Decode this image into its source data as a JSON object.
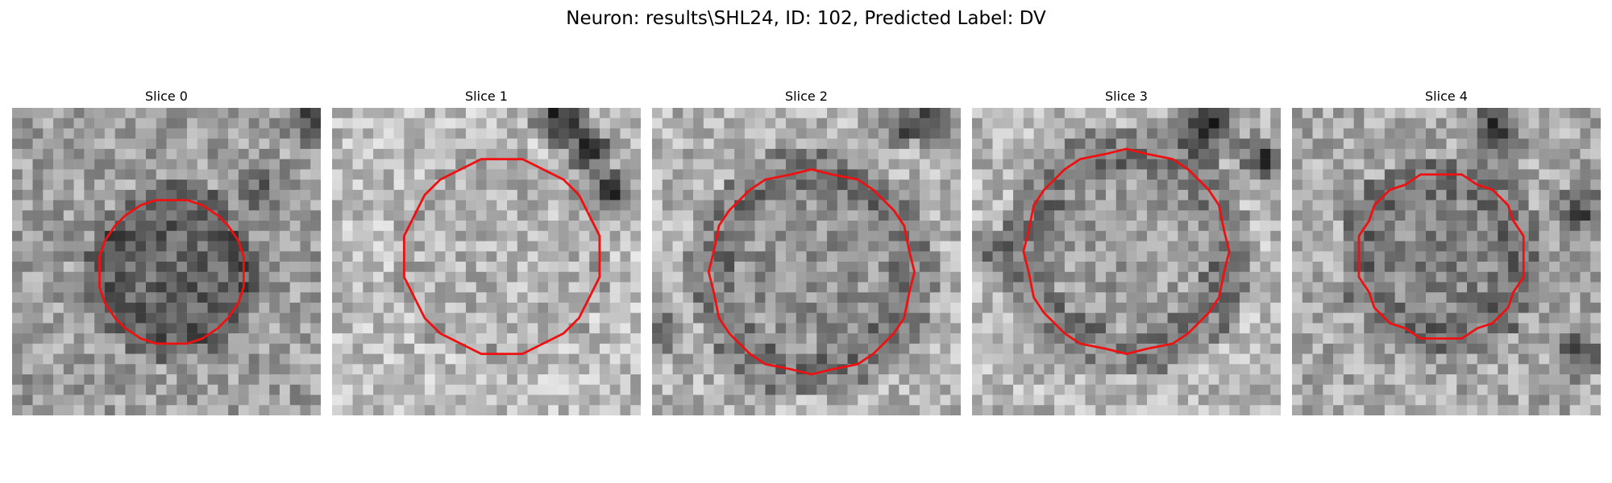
{
  "figure": {
    "title": "Neuron: results\\SHL24, ID: 102, Predicted Label: DV"
  },
  "panels": [
    {
      "title": "Slice 0"
    },
    {
      "title": "Slice 1"
    },
    {
      "title": "Slice 2"
    },
    {
      "title": "Slice 3"
    },
    {
      "title": "Slice 4"
    }
  ],
  "colors": {
    "contour": "#ee1111",
    "background": "#ffffff"
  }
}
